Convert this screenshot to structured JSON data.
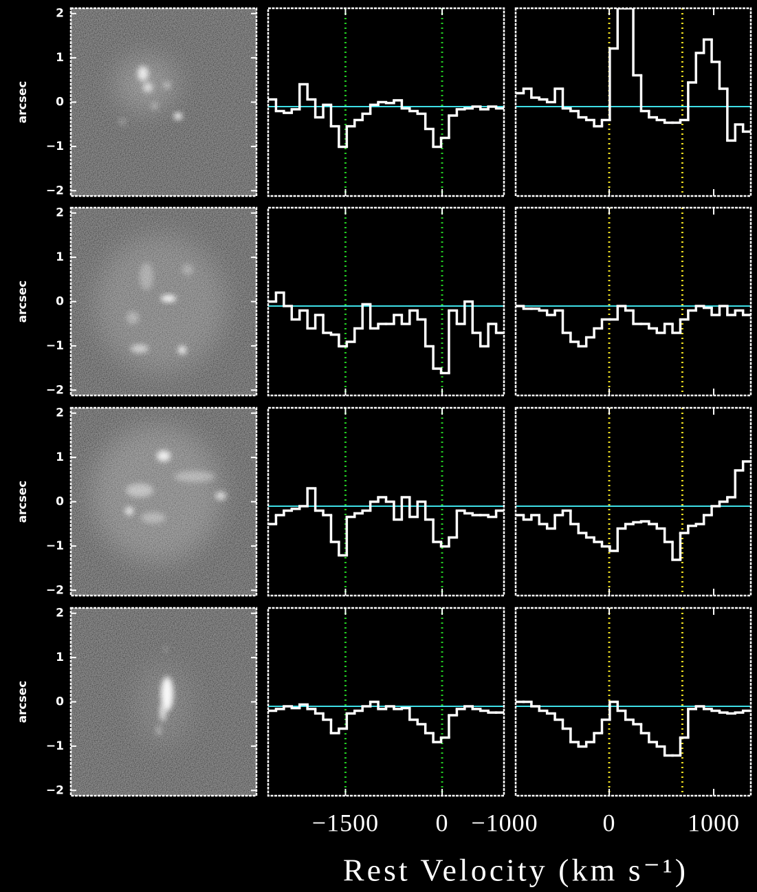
{
  "chart_data": [
    {
      "type": "image",
      "ylabel": "arcsec",
      "ylim": [
        -2.12,
        2.12
      ],
      "yticks": [
        2,
        1,
        0,
        {
          "value": -1,
          "label": "−1"
        },
        {
          "value": -2,
          "label": "−2"
        }
      ]
    },
    {
      "type": "step",
      "xlim": [
        -2700,
        960
      ],
      "ylim": [
        0,
        2.1
      ],
      "xticks": [
        {
          "value": -1500,
          "label": "−1500"
        },
        0
      ],
      "x": [
        -2639,
        -2517,
        -2395,
        -2273,
        -2151,
        -2029,
        -1907,
        -1785,
        -1663,
        -1541,
        -1419,
        -1297,
        -1175,
        -1053,
        -931,
        -809,
        -687,
        -565,
        -443,
        -321,
        -199,
        -77,
        45,
        167,
        289,
        411,
        533,
        655,
        777,
        899
      ],
      "continuum": 1,
      "continuum_color": "#3fe0e8",
      "markers": [
        -1500,
        0
      ],
      "marker_color": "#22cc22",
      "series": [
        {
          "color": "#ffffff",
          "values": [
            1.08,
            0.95,
            0.93,
            0.97,
            1.25,
            1.08,
            0.88,
            1.02,
            0.78,
            0.55,
            0.78,
            0.85,
            0.92,
            1.02,
            1.05,
            1.04,
            1.07,
            0.98,
            0.95,
            0.92,
            0.75,
            0.55,
            0.65,
            0.9,
            0.97,
            0.98,
            1.0,
            0.97,
            1.0,
            0.98
          ]
        },
        {
          "color": "#ffffff",
          "values": [
            1.05,
            1.15,
            1.0,
            0.85,
            0.95,
            0.75,
            0.9,
            0.7,
            0.68,
            0.55,
            0.6,
            0.75,
            1.02,
            0.75,
            0.8,
            0.8,
            0.9,
            0.8,
            0.95,
            0.85,
            0.55,
            0.3,
            0.25,
            0.95,
            0.8,
            1.05,
            0.7,
            0.55,
            0.8,
            0.7
          ]
        },
        {
          "color": "#ffffff",
          "values": [
            0.8,
            0.9,
            0.95,
            0.97,
            1.0,
            1.2,
            0.95,
            0.9,
            0.6,
            0.45,
            0.88,
            0.92,
            0.95,
            1.05,
            1.1,
            1.05,
            0.85,
            1.1,
            0.88,
            1.05,
            0.85,
            0.6,
            0.55,
            0.65,
            0.95,
            0.92,
            0.9,
            0.9,
            0.88,
            0.95
          ]
        },
        {
          "color": "#ffffff",
          "values": [
            0.95,
            0.97,
            1.0,
            0.98,
            1.02,
            0.97,
            0.92,
            0.85,
            0.7,
            0.75,
            0.92,
            0.95,
            1.0,
            1.05,
            0.97,
            1.0,
            0.97,
            0.98,
            0.85,
            0.8,
            0.7,
            0.6,
            0.65,
            0.9,
            0.97,
            1.0,
            0.97,
            0.95,
            0.93,
            0.93
          ]
        }
      ]
    },
    {
      "type": "step",
      "xlim": [
        -895,
        1355
      ],
      "ylim": [
        0,
        2.1
      ],
      "xticks": [
        {
          "value": -1000,
          "label": "−1000"
        },
        0,
        1000
      ],
      "x": [
        -857,
        -782,
        -707,
        -632,
        -557,
        -482,
        -407,
        -332,
        -257,
        -182,
        -107,
        -32,
        43,
        118,
        193,
        268,
        343,
        418,
        493,
        568,
        643,
        718,
        793,
        868,
        943,
        1018,
        1093,
        1168,
        1243,
        1318
      ],
      "continuum": 1,
      "continuum_color": "#3fe0e8",
      "markers": [
        0,
        700
      ],
      "marker_color": "#f0e020",
      "series": [
        {
          "color": "#ffffff",
          "values": [
            1.15,
            1.2,
            1.1,
            1.08,
            1.05,
            1.2,
            0.98,
            0.95,
            0.88,
            0.85,
            0.78,
            0.85,
            1.65,
            2.1,
            2.1,
            1.35,
            0.95,
            0.88,
            0.85,
            0.82,
            0.82,
            0.85,
            1.27,
            1.6,
            1.75,
            1.5,
            1.2,
            0.62,
            0.8,
            0.72
          ]
        },
        {
          "color": "#ffffff",
          "values": [
            1.0,
            0.97,
            0.97,
            0.95,
            0.9,
            0.95,
            0.7,
            0.6,
            0.55,
            0.65,
            0.75,
            0.85,
            0.85,
            1.0,
            0.95,
            0.8,
            0.8,
            0.75,
            0.7,
            0.8,
            0.7,
            0.85,
            0.95,
            1.0,
            0.98,
            0.9,
            1.0,
            0.9,
            0.95,
            0.9
          ]
        },
        {
          "color": "#ffffff",
          "values": [
            0.9,
            0.85,
            0.9,
            0.8,
            0.75,
            0.9,
            0.95,
            0.8,
            0.7,
            0.65,
            0.6,
            0.55,
            0.5,
            0.75,
            0.8,
            0.82,
            0.83,
            0.8,
            0.75,
            0.6,
            0.4,
            0.7,
            0.78,
            0.8,
            0.9,
            1.0,
            1.05,
            1.1,
            1.4,
            1.5
          ]
        },
        {
          "color": "#ffffff",
          "values": [
            1.05,
            1.05,
            1.0,
            0.95,
            0.92,
            0.85,
            0.75,
            0.6,
            0.55,
            0.6,
            0.7,
            0.85,
            1.05,
            0.95,
            0.85,
            0.8,
            0.7,
            0.6,
            0.55,
            0.45,
            0.45,
            0.65,
            0.97,
            1.0,
            0.97,
            0.95,
            0.93,
            0.92,
            0.93,
            0.95
          ]
        }
      ]
    }
  ],
  "xlabel": "Rest Velocity (km s⁻¹)"
}
